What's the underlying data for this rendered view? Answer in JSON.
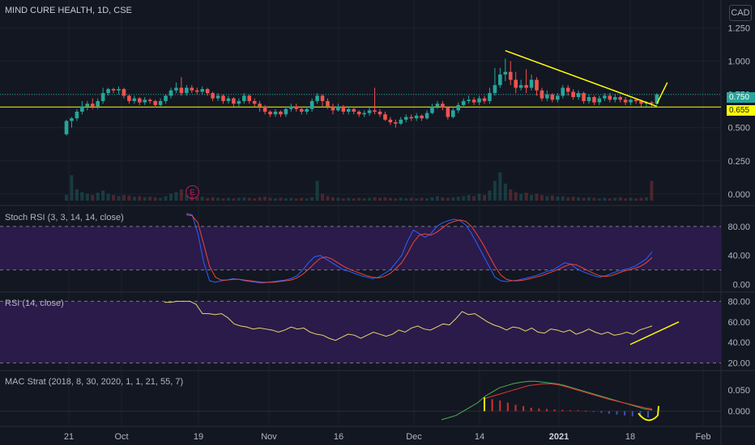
{
  "header": {
    "title": "MIND CURE HEALTH, 1D, CSE",
    "currency": "CAD"
  },
  "price_tags": {
    "last": "0.750",
    "support": "0.655"
  },
  "earnings_marker": "E",
  "colors": {
    "up": "#26a69a",
    "down": "#ef5350",
    "support_line": "#ffff00",
    "stoch_k": "#2962ff",
    "stoch_d": "#f44336",
    "rsi_line": "#e9d56a",
    "band_fill": "#2a1b4a",
    "mac_fast": "#4caf50",
    "mac_slow": "#e53935"
  },
  "chart_data": [
    {
      "name": "price",
      "type": "candlestick",
      "x_ticks": [
        "21",
        "Oct",
        "19",
        "Nov",
        "16",
        "Dec",
        "14",
        "2021",
        "18",
        "Feb"
      ],
      "y_ticks": [
        "1.250",
        "1.000",
        "0.750",
        "0.500",
        "0.250",
        "0.000"
      ],
      "ylim": [
        -0.05,
        1.4
      ],
      "candles": [
        [
          0.45,
          0.55,
          0.44,
          0.56
        ],
        [
          0.55,
          0.57,
          0.5,
          0.58
        ],
        [
          0.57,
          0.62,
          0.55,
          0.64
        ],
        [
          0.62,
          0.66,
          0.6,
          0.7
        ],
        [
          0.66,
          0.68,
          0.63,
          0.7
        ],
        [
          0.68,
          0.66,
          0.64,
          0.72
        ],
        [
          0.66,
          0.7,
          0.64,
          0.72
        ],
        [
          0.7,
          0.76,
          0.68,
          0.8
        ],
        [
          0.76,
          0.79,
          0.74,
          0.8
        ],
        [
          0.79,
          0.78,
          0.76,
          0.8
        ],
        [
          0.78,
          0.79,
          0.75,
          0.81
        ],
        [
          0.79,
          0.74,
          0.72,
          0.8
        ],
        [
          0.74,
          0.7,
          0.68,
          0.75
        ],
        [
          0.7,
          0.72,
          0.68,
          0.74
        ],
        [
          0.72,
          0.69,
          0.67,
          0.73
        ],
        [
          0.69,
          0.71,
          0.67,
          0.73
        ],
        [
          0.71,
          0.7,
          0.68,
          0.72
        ],
        [
          0.7,
          0.67,
          0.65,
          0.71
        ],
        [
          0.67,
          0.7,
          0.66,
          0.72
        ],
        [
          0.7,
          0.74,
          0.68,
          0.75
        ],
        [
          0.74,
          0.78,
          0.72,
          0.8
        ],
        [
          0.78,
          0.8,
          0.76,
          0.84
        ],
        [
          0.8,
          0.76,
          0.74,
          0.88
        ],
        [
          0.76,
          0.8,
          0.74,
          0.82
        ],
        [
          0.8,
          0.78,
          0.76,
          0.82
        ],
        [
          0.78,
          0.77,
          0.75,
          0.8
        ],
        [
          0.77,
          0.79,
          0.75,
          0.81
        ],
        [
          0.79,
          0.76,
          0.74,
          0.8
        ],
        [
          0.76,
          0.72,
          0.7,
          0.77
        ],
        [
          0.72,
          0.74,
          0.7,
          0.76
        ],
        [
          0.74,
          0.7,
          0.68,
          0.75
        ],
        [
          0.7,
          0.72,
          0.68,
          0.74
        ],
        [
          0.72,
          0.68,
          0.66,
          0.73
        ],
        [
          0.68,
          0.7,
          0.66,
          0.72
        ],
        [
          0.7,
          0.74,
          0.68,
          0.76
        ],
        [
          0.74,
          0.7,
          0.68,
          0.75
        ],
        [
          0.7,
          0.68,
          0.66,
          0.72
        ],
        [
          0.68,
          0.66,
          0.62,
          0.7
        ],
        [
          0.66,
          0.62,
          0.6,
          0.67
        ],
        [
          0.62,
          0.6,
          0.58,
          0.63
        ],
        [
          0.6,
          0.62,
          0.58,
          0.64
        ],
        [
          0.62,
          0.6,
          0.58,
          0.63
        ],
        [
          0.6,
          0.64,
          0.58,
          0.66
        ],
        [
          0.64,
          0.66,
          0.62,
          0.68
        ],
        [
          0.66,
          0.64,
          0.62,
          0.68
        ],
        [
          0.64,
          0.62,
          0.6,
          0.66
        ],
        [
          0.62,
          0.64,
          0.6,
          0.66
        ],
        [
          0.64,
          0.7,
          0.62,
          0.72
        ],
        [
          0.7,
          0.74,
          0.68,
          0.76
        ],
        [
          0.74,
          0.7,
          0.66,
          0.75
        ],
        [
          0.7,
          0.66,
          0.64,
          0.72
        ],
        [
          0.66,
          0.63,
          0.6,
          0.68
        ],
        [
          0.63,
          0.66,
          0.62,
          0.68
        ],
        [
          0.66,
          0.62,
          0.6,
          0.67
        ],
        [
          0.62,
          0.64,
          0.6,
          0.66
        ],
        [
          0.64,
          0.62,
          0.6,
          0.66
        ],
        [
          0.62,
          0.6,
          0.58,
          0.63
        ],
        [
          0.6,
          0.61,
          0.58,
          0.63
        ],
        [
          0.61,
          0.63,
          0.59,
          0.65
        ],
        [
          0.63,
          0.62,
          0.6,
          0.8
        ],
        [
          0.62,
          0.6,
          0.58,
          0.64
        ],
        [
          0.6,
          0.56,
          0.55,
          0.62
        ],
        [
          0.56,
          0.54,
          0.52,
          0.58
        ],
        [
          0.54,
          0.53,
          0.5,
          0.56
        ],
        [
          0.53,
          0.56,
          0.52,
          0.58
        ],
        [
          0.56,
          0.58,
          0.54,
          0.6
        ],
        [
          0.58,
          0.57,
          0.55,
          0.6
        ],
        [
          0.57,
          0.59,
          0.55,
          0.61
        ],
        [
          0.59,
          0.57,
          0.55,
          0.6
        ],
        [
          0.57,
          0.61,
          0.56,
          0.63
        ],
        [
          0.61,
          0.66,
          0.6,
          0.68
        ],
        [
          0.66,
          0.68,
          0.64,
          0.7
        ],
        [
          0.68,
          0.65,
          0.63,
          0.7
        ],
        [
          0.65,
          0.58,
          0.56,
          0.66
        ],
        [
          0.58,
          0.63,
          0.57,
          0.65
        ],
        [
          0.63,
          0.67,
          0.61,
          0.69
        ],
        [
          0.67,
          0.7,
          0.65,
          0.72
        ],
        [
          0.7,
          0.71,
          0.68,
          0.74
        ],
        [
          0.71,
          0.69,
          0.67,
          0.73
        ],
        [
          0.69,
          0.72,
          0.67,
          0.74
        ],
        [
          0.72,
          0.7,
          0.68,
          0.74
        ],
        [
          0.7,
          0.76,
          0.68,
          0.8
        ],
        [
          0.76,
          0.82,
          0.74,
          0.95
        ],
        [
          0.82,
          0.9,
          0.8,
          0.95
        ],
        [
          0.9,
          0.92,
          0.85,
          1.02
        ],
        [
          0.92,
          0.86,
          0.82,
          1.0
        ],
        [
          0.86,
          0.8,
          0.76,
          0.92
        ],
        [
          0.8,
          0.82,
          0.78,
          0.86
        ],
        [
          0.82,
          0.8,
          0.76,
          0.94
        ],
        [
          0.8,
          0.86,
          0.78,
          0.9
        ],
        [
          0.86,
          0.78,
          0.74,
          0.88
        ],
        [
          0.78,
          0.72,
          0.7,
          0.8
        ],
        [
          0.72,
          0.75,
          0.7,
          0.78
        ],
        [
          0.75,
          0.71,
          0.69,
          0.76
        ],
        [
          0.71,
          0.74,
          0.69,
          0.76
        ],
        [
          0.74,
          0.8,
          0.72,
          0.82
        ],
        [
          0.8,
          0.77,
          0.74,
          0.82
        ],
        [
          0.77,
          0.73,
          0.71,
          0.79
        ],
        [
          0.73,
          0.76,
          0.71,
          0.78
        ],
        [
          0.76,
          0.7,
          0.68,
          0.77
        ],
        [
          0.7,
          0.73,
          0.68,
          0.75
        ],
        [
          0.73,
          0.69,
          0.67,
          0.74
        ],
        [
          0.69,
          0.72,
          0.67,
          0.74
        ],
        [
          0.72,
          0.74,
          0.7,
          0.76
        ],
        [
          0.74,
          0.71,
          0.69,
          0.76
        ],
        [
          0.71,
          0.73,
          0.69,
          0.75
        ],
        [
          0.73,
          0.71,
          0.69,
          0.74
        ],
        [
          0.71,
          0.69,
          0.67,
          0.73
        ],
        [
          0.69,
          0.71,
          0.67,
          0.72
        ],
        [
          0.71,
          0.7,
          0.68,
          0.72
        ],
        [
          0.7,
          0.68,
          0.66,
          0.71
        ],
        [
          0.68,
          0.69,
          0.66,
          0.7
        ],
        [
          0.69,
          0.68,
          0.66,
          0.7
        ],
        [
          0.68,
          0.75,
          0.67,
          0.76
        ]
      ],
      "volume": [
        0.1,
        0.45,
        0.2,
        0.15,
        0.12,
        0.1,
        0.14,
        0.18,
        0.12,
        0.1,
        0.08,
        0.1,
        0.09,
        0.07,
        0.08,
        0.06,
        0.07,
        0.06,
        0.05,
        0.08,
        0.12,
        0.15,
        0.2,
        0.1,
        0.08,
        0.06,
        0.07,
        0.05,
        0.06,
        0.05,
        0.04,
        0.05,
        0.04,
        0.05,
        0.06,
        0.05,
        0.04,
        0.06,
        0.07,
        0.05,
        0.04,
        0.05,
        0.04,
        0.05,
        0.04,
        0.05,
        0.04,
        0.06,
        0.35,
        0.12,
        0.08,
        0.06,
        0.05,
        0.04,
        0.05,
        0.04,
        0.05,
        0.04,
        0.05,
        0.06,
        0.05,
        0.06,
        0.05,
        0.04,
        0.05,
        0.04,
        0.05,
        0.04,
        0.05,
        0.04,
        0.06,
        0.08,
        0.06,
        0.05,
        0.06,
        0.07,
        0.08,
        0.1,
        0.08,
        0.12,
        0.1,
        0.18,
        0.35,
        0.5,
        0.3,
        0.2,
        0.15,
        0.12,
        0.14,
        0.1,
        0.12,
        0.1,
        0.08,
        0.09,
        0.07,
        0.08,
        0.06,
        0.07,
        0.06,
        0.05,
        0.06,
        0.05,
        0.04,
        0.05,
        0.04,
        0.05,
        0.06,
        0.04,
        0.05,
        0.04,
        0.05,
        0.06,
        0.35
      ],
      "support_level": 0.655,
      "last_price": 0.75,
      "trendline": {
        "from_bar": 84,
        "from": 1.08,
        "to_bar": 113,
        "to": 0.66
      },
      "breakout_line": {
        "from_bar": 113,
        "from": 0.68,
        "to_bar": 115,
        "to": 0.84
      }
    },
    {
      "name": "Stoch RSI",
      "title": "Stoch RSI (3, 3, 14, 14, close)",
      "type": "line",
      "y_ticks": [
        "80.00",
        "40.00",
        "0.00"
      ],
      "band": [
        20,
        80
      ],
      "ylim": [
        -5,
        100
      ],
      "series": [
        {
          "name": "K",
          "values": [
            98,
            96,
            70,
            30,
            5,
            3,
            5,
            6,
            8,
            7,
            5,
            4,
            3,
            2,
            3,
            4,
            5,
            6,
            8,
            12,
            20,
            30,
            38,
            40,
            35,
            30,
            25,
            20,
            18,
            15,
            12,
            10,
            8,
            10,
            15,
            20,
            30,
            40,
            60,
            75,
            70,
            65,
            70,
            80,
            85,
            88,
            90,
            88,
            82,
            70,
            55,
            40,
            25,
            10,
            5,
            4,
            5,
            6,
            8,
            10,
            12,
            15,
            18,
            20,
            25,
            30,
            28,
            22,
            18,
            15,
            12,
            10,
            12,
            15,
            18,
            20,
            22,
            25,
            30,
            35,
            45
          ]
        },
        {
          "name": "D",
          "values": [
            96,
            95,
            85,
            55,
            25,
            10,
            6,
            6,
            7,
            7,
            6,
            5,
            4,
            3,
            3,
            3,
            4,
            5,
            6,
            9,
            14,
            21,
            29,
            36,
            38,
            35,
            30,
            25,
            21,
            18,
            15,
            12,
            10,
            9,
            11,
            15,
            22,
            30,
            43,
            58,
            68,
            70,
            68,
            72,
            78,
            84,
            87,
            89,
            87,
            80,
            68,
            55,
            40,
            25,
            13,
            7,
            5,
            5,
            6,
            8,
            10,
            12,
            15,
            18,
            21,
            25,
            28,
            27,
            23,
            19,
            15,
            12,
            11,
            12,
            15,
            18,
            20,
            22,
            25,
            30,
            37
          ]
        }
      ]
    },
    {
      "name": "RSI",
      "title": "RSI (14, close)",
      "type": "line",
      "y_ticks": [
        "80.00",
        "60.00",
        "40.00",
        "20.00"
      ],
      "band": [
        20,
        80
      ],
      "ylim": [
        15,
        85
      ],
      "values": [
        79,
        79,
        80,
        80,
        80,
        77,
        68,
        68,
        67,
        68,
        64,
        58,
        56,
        55,
        53,
        54,
        53,
        52,
        50,
        52,
        55,
        53,
        54,
        50,
        48,
        47,
        44,
        42,
        45,
        48,
        47,
        44,
        47,
        50,
        48,
        46,
        48,
        52,
        50,
        54,
        56,
        53,
        52,
        55,
        58,
        57,
        63,
        70,
        67,
        68,
        64,
        60,
        57,
        55,
        52,
        55,
        54,
        51,
        54,
        50,
        49,
        53,
        52,
        50,
        52,
        48,
        50,
        53,
        50,
        48,
        50,
        47,
        48,
        50,
        48,
        52,
        54,
        56
      ],
      "trendline": {
        "from": 38,
        "to": 60
      }
    },
    {
      "name": "MAC Strat",
      "title": "MAC Strat (2018, 8, 30, 2020, 1, 1, 21, 55, 7)",
      "type": "line+histogram",
      "y_ticks": [
        "0.050",
        "0.000"
      ],
      "ylim": [
        -0.03,
        0.08
      ],
      "series": [
        {
          "name": "fast",
          "values": [
            -0.02,
            -0.015,
            -0.01,
            0.0,
            0.01,
            0.02,
            0.035,
            0.045,
            0.055,
            0.06,
            0.065,
            0.068,
            0.07,
            0.07,
            0.068,
            0.066,
            0.064,
            0.06,
            0.055,
            0.05,
            0.045,
            0.04,
            0.035,
            0.03,
            0.025,
            0.02,
            0.015,
            0.01,
            0.005,
            0.003
          ]
        },
        {
          "name": "slow",
          "values": [
            null,
            null,
            null,
            null,
            null,
            null,
            0.03,
            0.035,
            0.04,
            0.045,
            0.05,
            0.055,
            0.06,
            0.062,
            0.064,
            0.064,
            0.062,
            0.058,
            0.053,
            0.048,
            0.043,
            0.038,
            0.033,
            0.028,
            0.024,
            0.02,
            0.016,
            0.012,
            0.008,
            0.005
          ]
        }
      ],
      "histogram": [
        0.032,
        0.028,
        0.025,
        0.02,
        0.015,
        0.012,
        0.008,
        0.006,
        0.005,
        0.004,
        0.003,
        0.002,
        0.002,
        0.001,
        -0.002,
        -0.004,
        -0.006,
        -0.008,
        -0.01,
        -0.012,
        -0.013,
        -0.015
      ]
    }
  ]
}
